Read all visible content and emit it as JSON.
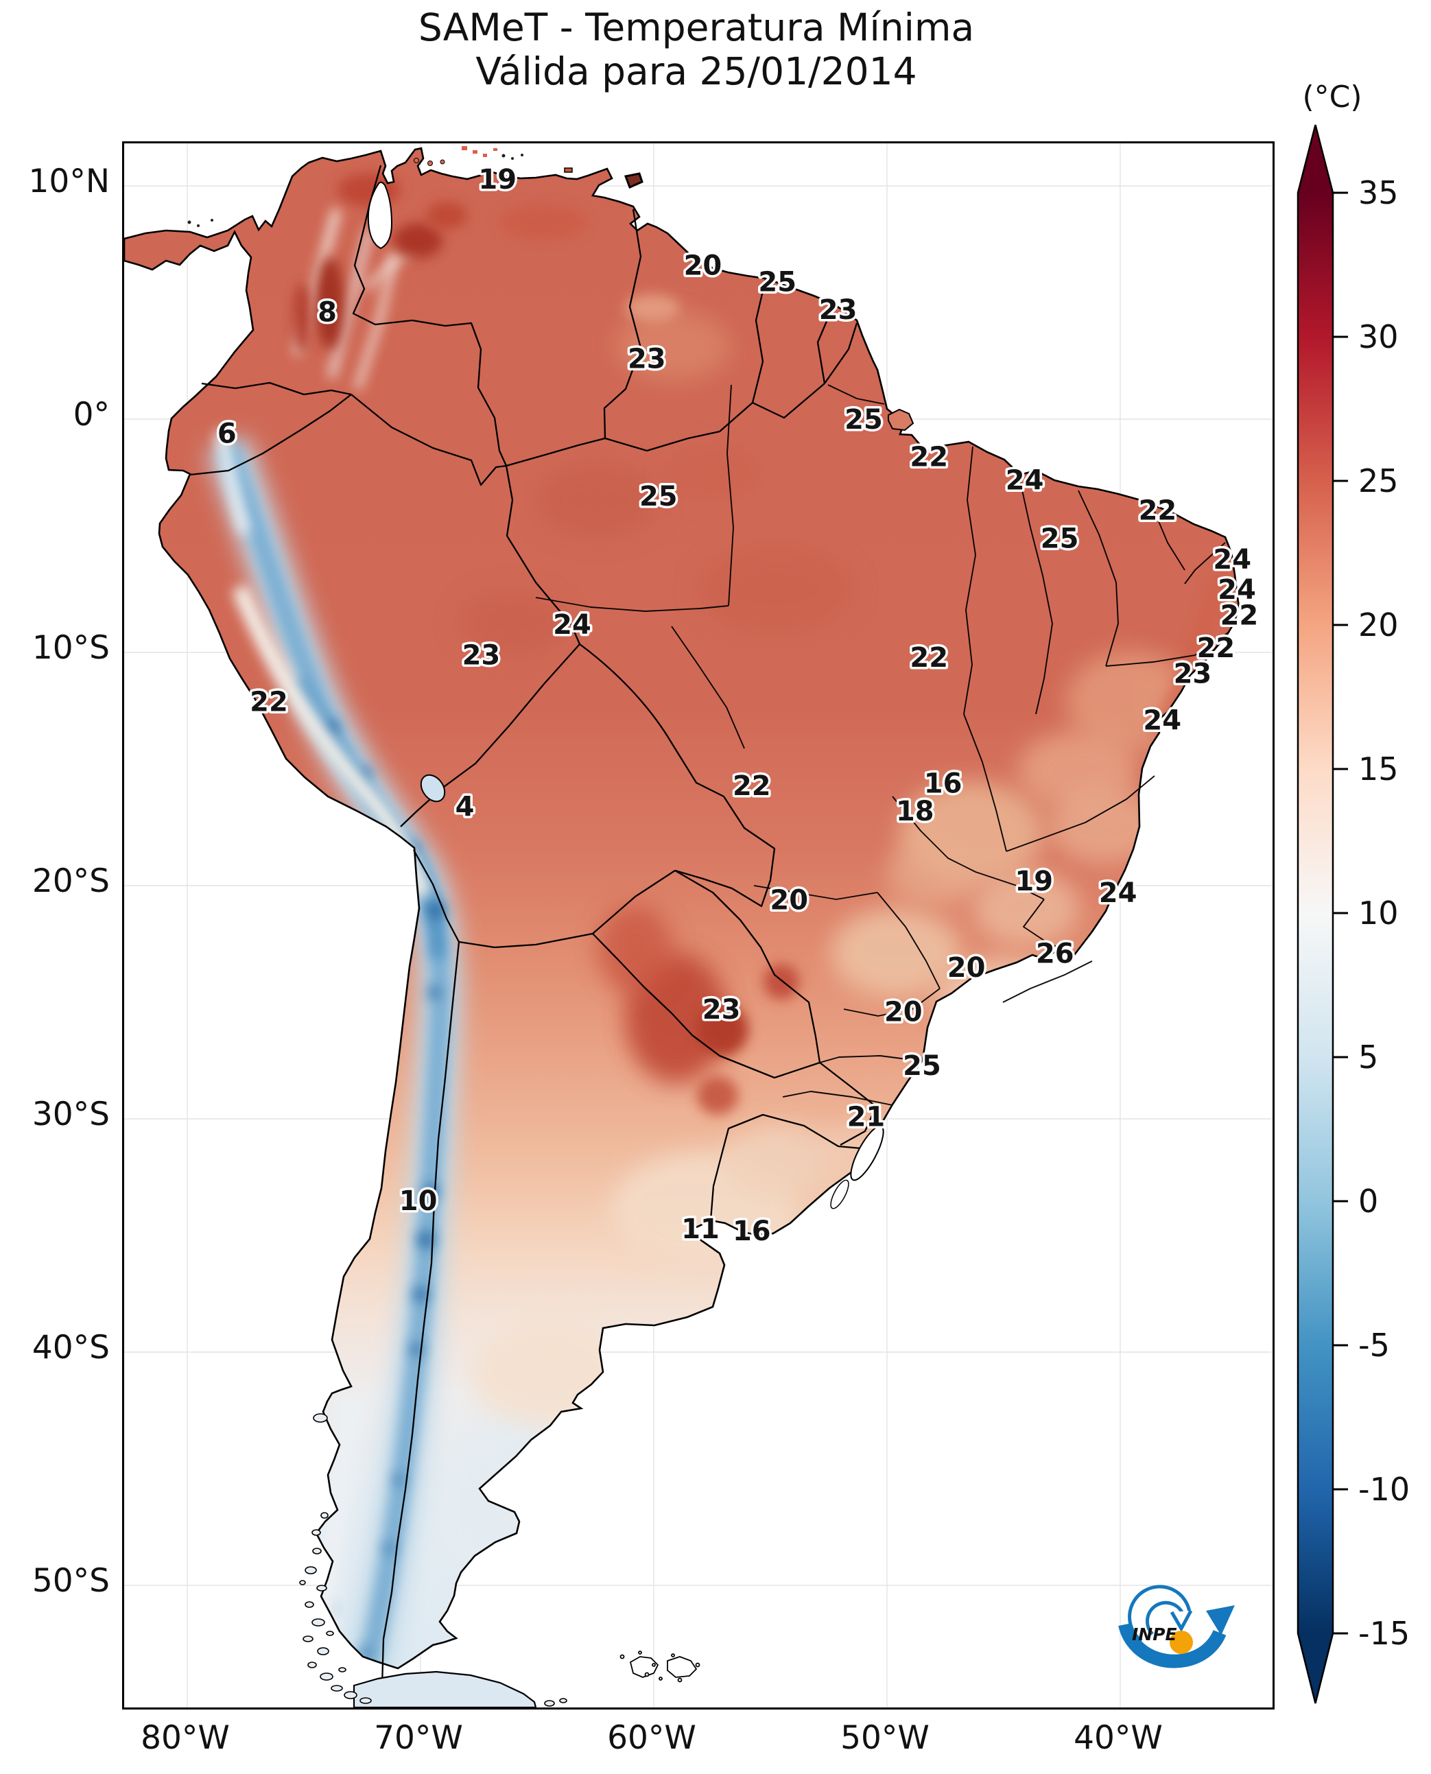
{
  "title": {
    "line1": "SAMeT - Temperatura Mínima",
    "line2": "Válida para 25/01/2014"
  },
  "axes": {
    "lat_ticks": [
      {
        "label": "10°N",
        "value": 10
      },
      {
        "label": "0°",
        "value": 0
      },
      {
        "label": "10°S",
        "value": -10
      },
      {
        "label": "20°S",
        "value": -20
      },
      {
        "label": "30°S",
        "value": -30
      },
      {
        "label": "40°S",
        "value": -40
      },
      {
        "label": "50°S",
        "value": -50
      }
    ],
    "lon_ticks": [
      {
        "label": "80°W",
        "value": 80
      },
      {
        "label": "70°W",
        "value": 70
      },
      {
        "label": "60°W",
        "value": 60
      },
      {
        "label": "50°W",
        "value": 50
      },
      {
        "label": "40°W",
        "value": 40
      }
    ]
  },
  "colorbar": {
    "unit": "(°C)",
    "ticks": [
      35,
      30,
      25,
      20,
      15,
      10,
      5,
      0,
      -5,
      -10,
      -15
    ],
    "vmin": -15,
    "vmax": 35,
    "extend": "both",
    "colormap": "RdBu_r",
    "colors_top_to_bottom": [
      "#67001f",
      "#b2182b",
      "#d6604d",
      "#f4a582",
      "#fddbc7",
      "#f7f7f7",
      "#d1e5f0",
      "#92c5de",
      "#4393c3",
      "#2166ac",
      "#053061"
    ]
  },
  "logo": {
    "text": "INPE",
    "blue": "#1577bd",
    "orange": "#f3a208"
  },
  "chart_data": {
    "type": "heatmap",
    "title": "SAMeT - Temperatura Mínima",
    "subtitle": "Válida para 25/01/2014",
    "valid_date": "25/01/2014",
    "unit": "°C",
    "xlabel": "",
    "ylabel": "",
    "x_ticks_deg_west": [
      80,
      70,
      60,
      50,
      40
    ],
    "y_ticks_deg_lat": [
      10,
      0,
      -10,
      -20,
      -30,
      -40,
      -50
    ],
    "domain": {
      "lon_w": [
        82.5,
        33.5
      ],
      "lat": [
        11.8,
        -55.2
      ]
    },
    "colorbar": {
      "min": -15,
      "max": 35,
      "tick_step": 5,
      "extend": "both",
      "cmap": "RdBu_r"
    },
    "grid": true,
    "legend_position": "right-colorbar",
    "stations": [
      {
        "lon_w": 66.7,
        "lat": 10.3,
        "value": 19
      },
      {
        "lon_w": 57.9,
        "lat": 6.6,
        "value": 20
      },
      {
        "lon_w": 54.7,
        "lat": 5.9,
        "value": 25
      },
      {
        "lon_w": 52.1,
        "lat": 4.7,
        "value": 23
      },
      {
        "lon_w": 74.0,
        "lat": 4.6,
        "value": 8
      },
      {
        "lon_w": 60.3,
        "lat": 2.6,
        "value": 23
      },
      {
        "lon_w": 78.3,
        "lat": -0.6,
        "value": 6
      },
      {
        "lon_w": 51.0,
        "lat": 0.0,
        "value": 25
      },
      {
        "lon_w": 48.2,
        "lat": -1.6,
        "value": 22
      },
      {
        "lon_w": 44.1,
        "lat": -2.6,
        "value": 24
      },
      {
        "lon_w": 38.4,
        "lat": -3.9,
        "value": 22
      },
      {
        "lon_w": 42.6,
        "lat": -5.1,
        "value": 25
      },
      {
        "lon_w": 35.2,
        "lat": -6.0,
        "value": 24
      },
      {
        "lon_w": 35.0,
        "lat": -7.3,
        "value": 24
      },
      {
        "lon_w": 34.9,
        "lat": -8.4,
        "value": 22
      },
      {
        "lon_w": 35.9,
        "lat": -9.8,
        "value": 22
      },
      {
        "lon_w": 36.9,
        "lat": -10.9,
        "value": 23
      },
      {
        "lon_w": 38.2,
        "lat": -12.9,
        "value": 24
      },
      {
        "lon_w": 59.8,
        "lat": -3.3,
        "value": 25
      },
      {
        "lon_w": 63.5,
        "lat": -8.8,
        "value": 24
      },
      {
        "lon_w": 67.4,
        "lat": -10.1,
        "value": 23
      },
      {
        "lon_w": 48.2,
        "lat": -10.2,
        "value": 22
      },
      {
        "lon_w": 76.5,
        "lat": -12.1,
        "value": 22
      },
      {
        "lon_w": 68.1,
        "lat": -16.6,
        "value": 4
      },
      {
        "lon_w": 55.8,
        "lat": -15.7,
        "value": 22
      },
      {
        "lon_w": 47.6,
        "lat": -15.6,
        "value": 16
      },
      {
        "lon_w": 48.8,
        "lat": -16.8,
        "value": 18
      },
      {
        "lon_w": 43.7,
        "lat": -19.8,
        "value": 19
      },
      {
        "lon_w": 40.1,
        "lat": -20.3,
        "value": 24
      },
      {
        "lon_w": 54.2,
        "lat": -20.6,
        "value": 20
      },
      {
        "lon_w": 42.8,
        "lat": -22.9,
        "value": 26
      },
      {
        "lon_w": 46.6,
        "lat": -23.5,
        "value": 20
      },
      {
        "lon_w": 57.1,
        "lat": -25.3,
        "value": 23
      },
      {
        "lon_w": 49.3,
        "lat": -25.4,
        "value": 20
      },
      {
        "lon_w": 48.5,
        "lat": -27.7,
        "value": 25
      },
      {
        "lon_w": 50.9,
        "lat": -29.9,
        "value": 21
      },
      {
        "lon_w": 70.1,
        "lat": -33.5,
        "value": 10
      },
      {
        "lon_w": 58.0,
        "lat": -34.7,
        "value": 11
      },
      {
        "lon_w": 55.8,
        "lat": -34.8,
        "value": 16
      }
    ]
  }
}
